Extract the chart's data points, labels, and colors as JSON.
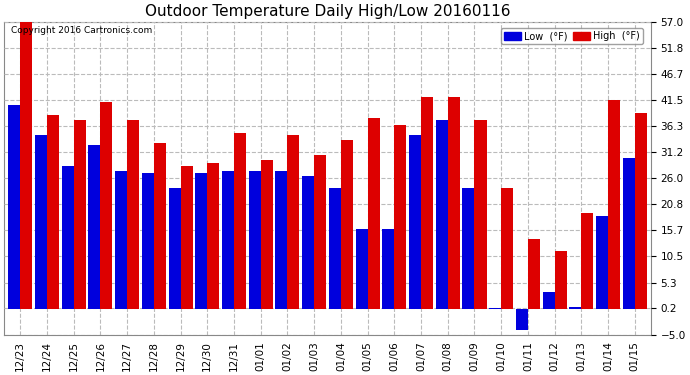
{
  "title": "Outdoor Temperature Daily High/Low 20160116",
  "copyright": "Copyright 2016 Cartronics.com",
  "legend_low": "Low  (°F)",
  "legend_high": "High  (°F)",
  "low_color": "#0000dd",
  "high_color": "#dd0000",
  "background_color": "#ffffff",
  "grid_color": "#bbbbbb",
  "ylim": [
    -5.0,
    57.0
  ],
  "yticks": [
    -5.0,
    0.2,
    5.3,
    10.5,
    15.7,
    20.8,
    26.0,
    31.2,
    36.3,
    41.5,
    46.7,
    51.8,
    57.0
  ],
  "dates": [
    "12/23",
    "12/24",
    "12/25",
    "12/26",
    "12/27",
    "12/28",
    "12/29",
    "12/30",
    "12/31",
    "01/01",
    "01/02",
    "01/03",
    "01/04",
    "01/05",
    "01/06",
    "01/07",
    "01/08",
    "01/09",
    "01/10",
    "01/11",
    "01/12",
    "01/13",
    "01/14",
    "01/15"
  ],
  "high_vals": [
    57.0,
    38.5,
    37.5,
    41.0,
    37.5,
    33.0,
    28.5,
    29.0,
    35.0,
    29.5,
    34.5,
    30.5,
    33.5,
    38.0,
    36.5,
    42.0,
    42.0,
    37.5,
    24.0,
    14.0,
    11.5,
    19.0,
    41.5,
    39.0
  ],
  "low_vals": [
    40.5,
    34.5,
    28.5,
    32.5,
    27.5,
    27.0,
    24.0,
    27.0,
    27.5,
    27.5,
    27.5,
    26.5,
    24.0,
    16.0,
    16.0,
    34.5,
    37.5,
    24.0,
    0.2,
    -4.0,
    3.5,
    0.5,
    18.5,
    30.0
  ]
}
